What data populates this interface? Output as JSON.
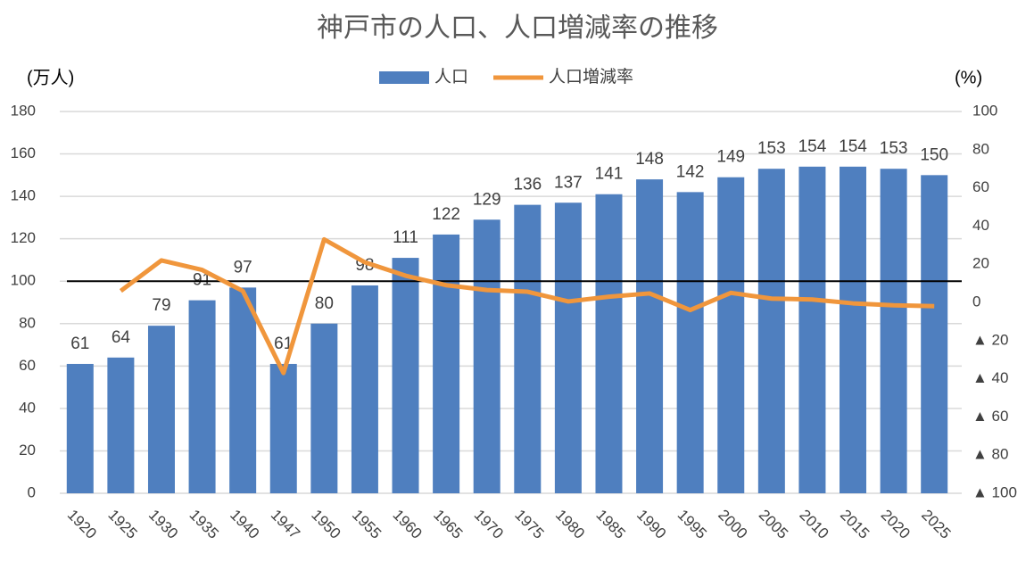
{
  "chart_data": {
    "type": "bar-line",
    "title": "神戸市の人口、人口増減率の推移",
    "y_label": "(万人)",
    "y2_label": "(%)",
    "categories": [
      "1920",
      "1925",
      "1930",
      "1935",
      "1940",
      "1947",
      "1950",
      "1955",
      "1960",
      "1965",
      "1970",
      "1975",
      "1980",
      "1985",
      "1990",
      "1995",
      "2000",
      "2005",
      "2010",
      "2015",
      "2020",
      "2025"
    ],
    "series": [
      {
        "name": "人口",
        "type": "bar",
        "color": "#4f7fbf",
        "values": [
          61,
          64,
          79,
          91,
          97,
          61,
          80,
          98,
          111,
          122,
          129,
          136,
          137,
          141,
          148,
          142,
          149,
          153,
          154,
          154,
          153,
          150
        ]
      },
      {
        "name": "人口増減率",
        "type": "line",
        "axis": "y2",
        "color": "#f0963c",
        "values": [
          null,
          6,
          22,
          17,
          6,
          -37,
          33,
          21,
          14,
          9,
          6.5,
          5.6,
          0.5,
          3,
          4.7,
          -4,
          5,
          2,
          1.5,
          -0.5,
          -1.5,
          -2
        ]
      }
    ],
    "reference_line": 100,
    "ylim": [
      0,
      180
    ],
    "yticks": [
      0,
      20,
      40,
      60,
      80,
      100,
      120,
      140,
      160,
      180
    ],
    "y2lim": [
      -100,
      100
    ],
    "y2ticks": [
      100,
      80,
      60,
      40,
      20,
      0,
      {
        "value": -20,
        "label": "▲ 20"
      },
      {
        "value": -40,
        "label": "▲ 40"
      },
      {
        "value": -60,
        "label": "▲ 60"
      },
      {
        "value": -80,
        "label": "▲ 80"
      },
      {
        "value": -100,
        "label": "▲ 100"
      }
    ],
    "grid": true,
    "legend": "top"
  }
}
